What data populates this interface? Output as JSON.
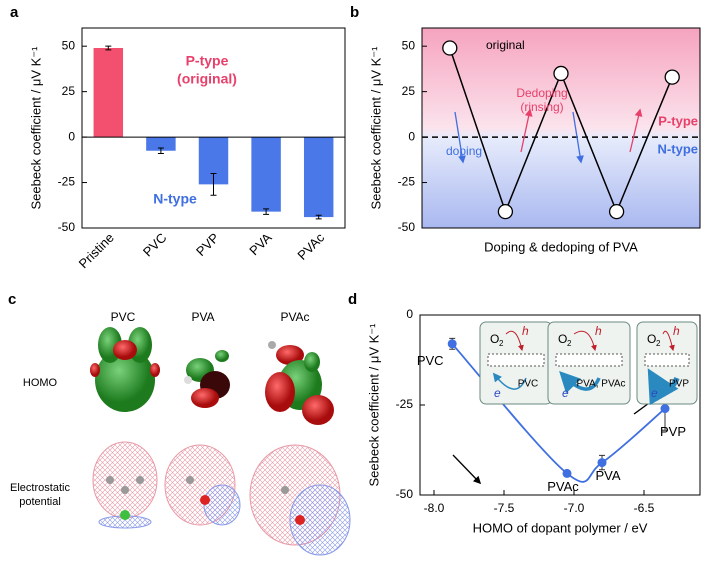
{
  "chart_data": [
    {
      "type": "bar",
      "panel_label": "a",
      "y_label": "Seebeck coefficient / μV K⁻¹",
      "categories": [
        "Pristine",
        "PVC",
        "PVP",
        "PVA",
        "PVAc"
      ],
      "values": [
        49,
        -7.5,
        -26,
        -41,
        -44
      ],
      "errors": [
        1,
        1.5,
        6,
        1.5,
        1
      ],
      "colors": [
        "#f2506e",
        "#4a78e8",
        "#4a78e8",
        "#4a78e8",
        "#4a78e8"
      ],
      "ylim": [
        -50,
        60
      ],
      "yticks": [
        -50,
        -25,
        0,
        25,
        50
      ],
      "annotations": [
        {
          "text": "P-type",
          "color": "#e8406a"
        },
        {
          "text": "(original)",
          "color": "#e8406a"
        },
        {
          "text": "N-type",
          "color": "#3f6fe0"
        }
      ]
    },
    {
      "type": "line",
      "panel_label": "b",
      "y_label": "Seebeck coefficient / μV K⁻¹",
      "x_label": "Doping & dedoping of PVA",
      "categories": [
        null,
        null,
        null,
        null,
        null
      ],
      "values": [
        49,
        -41,
        35,
        -41,
        33
      ],
      "ylim": [
        -50,
        60
      ],
      "yticks": [
        -50,
        -25,
        0,
        25,
        50
      ],
      "annotations": [
        {
          "text": "original",
          "color": "#000000"
        },
        {
          "text": "Dedoping",
          "color": "#e8406a"
        },
        {
          "text": "(rinsing)",
          "color": "#e8406a"
        },
        {
          "text": "doping",
          "color": "#3f6fe0"
        },
        {
          "text": "P-type",
          "color": "#e8406a"
        },
        {
          "text": "N-type",
          "color": "#3f6fe0"
        }
      ]
    },
    {
      "type": "scatter",
      "panel_label": "d",
      "y_label": "Seebeck coefficient / μV K⁻¹",
      "x_label": "HOMO of dopant polymer / eV",
      "labels": [
        "PVC",
        "PVAc",
        "PVA",
        "PVP"
      ],
      "x": [
        -7.87,
        -7.05,
        -6.8,
        -6.35
      ],
      "values": [
        -8,
        -44,
        -41,
        -26
      ],
      "errors": [
        1.5,
        0.5,
        2,
        6
      ],
      "color": "#3f6fe0",
      "xlim": [
        -8.1,
        -6.1
      ],
      "xticks": [
        {
          "value": -8,
          "label": "-8.0"
        },
        {
          "value": -7.5,
          "label": "-7.5"
        },
        {
          "value": -7,
          "label": "-7.0"
        },
        {
          "value": -6.5,
          "label": "-6.5"
        }
      ],
      "ylim": [
        -50,
        0
      ],
      "yticks": [
        -50,
        -25,
        0
      ],
      "insets": [
        {
          "label": "PVC"
        },
        {
          "label": "PVA, PVAc"
        },
        {
          "label": "PVP"
        }
      ],
      "inset_text": {
        "o": "O",
        "sub": "2",
        "h": "h",
        "e": "e"
      }
    }
  ],
  "panel_c": {
    "panel_label": "c",
    "columns": [
      "PVC",
      "PVA",
      "PVAc"
    ],
    "homo_label": "HOMO",
    "esp_label": [
      "Electrostatic",
      "potential"
    ]
  }
}
